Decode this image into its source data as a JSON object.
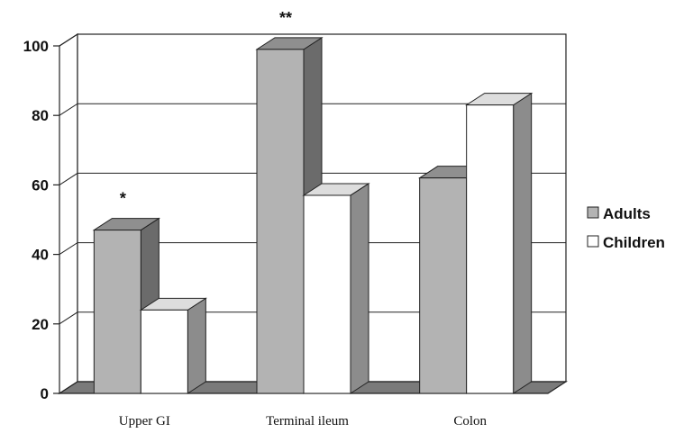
{
  "chart_data": {
    "type": "bar",
    "categories": [
      "Upper GI",
      "Terminal ileum",
      "Colon"
    ],
    "series": [
      {
        "name": "Adults",
        "values": [
          47,
          99,
          62
        ],
        "color": "#b3b3b3"
      },
      {
        "name": "Children",
        "values": [
          24,
          57,
          83
        ],
        "color": "#ffffff"
      }
    ],
    "ylim": [
      0,
      100
    ],
    "yticks": [
      "0",
      "20",
      "40",
      "60",
      "80",
      "100"
    ],
    "annotations": [
      {
        "text": "*",
        "category": "Upper GI"
      },
      {
        "text": "**",
        "category": "Terminal ileum"
      }
    ],
    "grid": true,
    "legend_position": "right",
    "three_d": true
  }
}
